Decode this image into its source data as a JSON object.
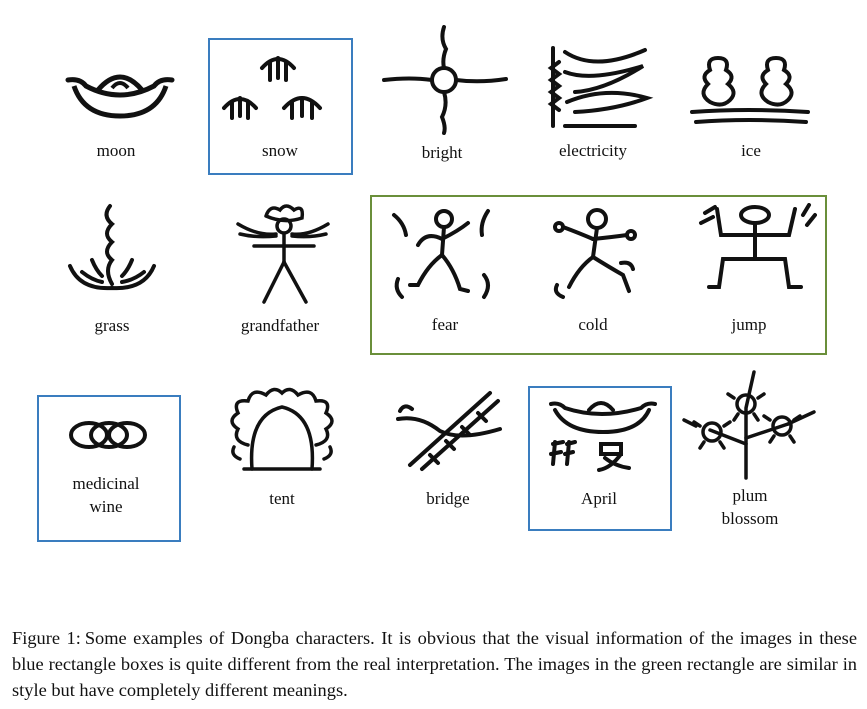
{
  "figure": {
    "characters": {
      "moon": "moon",
      "snow": "snow",
      "bright": "bright",
      "electricity": "electricity",
      "ice": "ice",
      "grass": "grass",
      "grandfather": "grandfather",
      "fear": "fear",
      "cold": "cold",
      "jump": "jump",
      "medicinal_wine_line1": "medicinal",
      "medicinal_wine_line2": "wine",
      "tent": "tent",
      "bridge": "bridge",
      "april": "April",
      "plum_blossom_line1": "plum",
      "plum_blossom_line2": "blossom"
    },
    "colors": {
      "blue_box": "#3a7dbf",
      "green_box": "#6a8f3a",
      "ink": "#111111"
    }
  },
  "caption": {
    "label": "Figure 1:",
    "text": "Some examples of Dongba characters. It is obvious that the visual information of the images in these blue rectangle boxes is quite different from the real interpretation. The images in the green rectangle are similar in style but have completely different meanings."
  }
}
